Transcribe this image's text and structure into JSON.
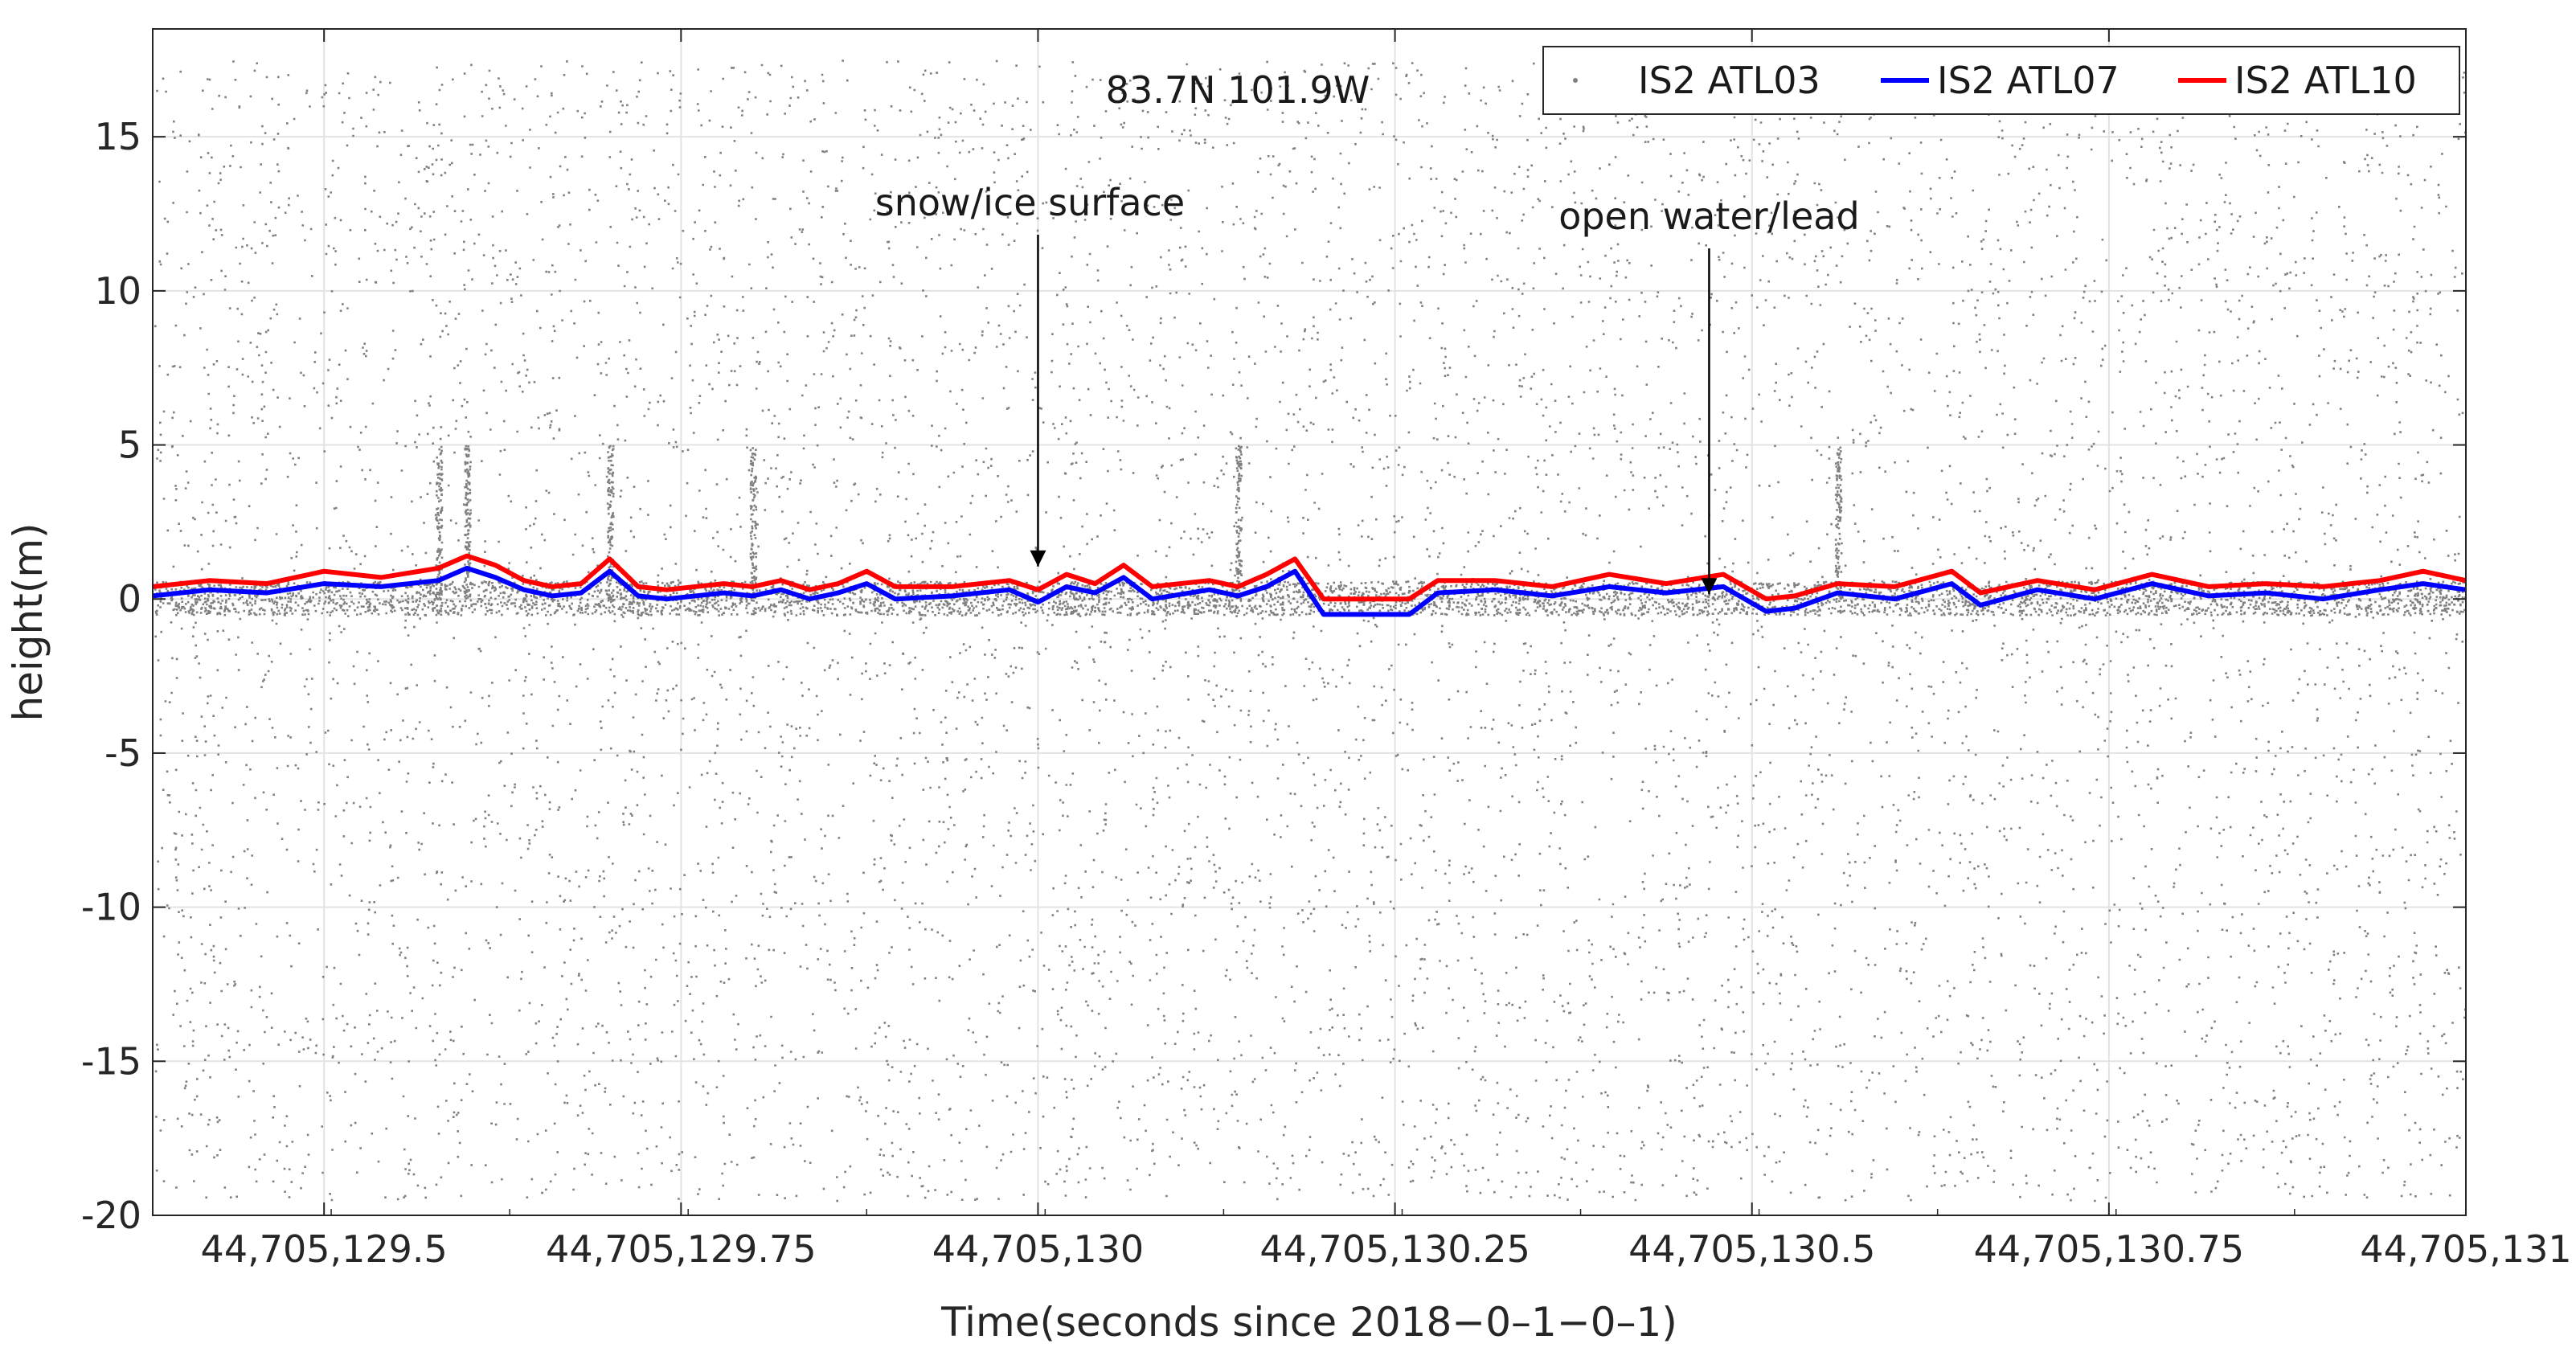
{
  "chart_data": {
    "type": "scatter",
    "title": "",
    "location_label": "83.7N 101.9W",
    "xlabel": "Time(seconds since 2018−0–1−0–1)",
    "ylabel": "height(m)",
    "xlim": [
      44705129.38,
      44705131.0
    ],
    "ylim": [
      -20,
      18.5
    ],
    "grid": true,
    "legend_position": "top-right",
    "x_ticks": [
      {
        "value": 44705129.5,
        "label": "44,705,129.5"
      },
      {
        "value": 44705129.75,
        "label": "44,705,129.75"
      },
      {
        "value": 44705130.0,
        "label": "44,705,130"
      },
      {
        "value": 44705130.25,
        "label": "44,705,130.25"
      },
      {
        "value": 44705130.5,
        "label": "44,705,130.5"
      },
      {
        "value": 44705130.75,
        "label": "44,705,130.75"
      },
      {
        "value": 44705131.0,
        "label": "44,705,131"
      }
    ],
    "y_ticks": [
      {
        "value": 15,
        "label": "15"
      },
      {
        "value": 10,
        "label": "10"
      },
      {
        "value": 5,
        "label": "5"
      },
      {
        "value": 0,
        "label": "0"
      },
      {
        "value": -5,
        "label": "-5"
      },
      {
        "value": -10,
        "label": "-10"
      },
      {
        "value": -15,
        "label": "-15"
      },
      {
        "value": -20,
        "label": "-20"
      }
    ],
    "series": [
      {
        "name": "IS2 ATL03",
        "kind": "points",
        "color": "#808080",
        "description_range_m": [
          -19.5,
          17.5
        ],
        "dense_surface_band_m": [
          -0.5,
          0.6
        ]
      },
      {
        "name": "IS2 ATL07",
        "kind": "line",
        "color": "#0000ff",
        "x": [
          44705129.38,
          44705129.42,
          44705129.46,
          44705129.5,
          44705129.54,
          44705129.58,
          44705129.6,
          44705129.62,
          44705129.64,
          44705129.66,
          44705129.68,
          44705129.7,
          44705129.72,
          44705129.74,
          44705129.78,
          44705129.8,
          44705129.82,
          44705129.84,
          44705129.86,
          44705129.88,
          44705129.9,
          44705129.94,
          44705129.98,
          44705130.0,
          44705130.02,
          44705130.04,
          44705130.06,
          44705130.08,
          44705130.12,
          44705130.14,
          44705130.16,
          44705130.18,
          44705130.2,
          44705130.24,
          44705130.26,
          44705130.28,
          44705130.32,
          44705130.36,
          44705130.4,
          44705130.44,
          44705130.48,
          44705130.51,
          44705130.53,
          44705130.56,
          44705130.6,
          44705130.64,
          44705130.66,
          44705130.7,
          44705130.74,
          44705130.78,
          44705130.82,
          44705130.86,
          44705130.9,
          44705130.94,
          44705130.97,
          44705131.0
        ],
        "y": [
          0.1,
          0.3,
          0.2,
          0.5,
          0.4,
          0.6,
          1.0,
          0.7,
          0.3,
          0.1,
          0.2,
          0.9,
          0.1,
          0.0,
          0.2,
          0.1,
          0.3,
          0.0,
          0.2,
          0.5,
          0.0,
          0.1,
          0.3,
          -0.1,
          0.4,
          0.2,
          0.7,
          0.0,
          0.3,
          0.1,
          0.4,
          0.9,
          -0.5,
          -0.5,
          -0.5,
          0.2,
          0.3,
          0.1,
          0.4,
          0.2,
          0.4,
          -0.4,
          -0.3,
          0.2,
          0.0,
          0.5,
          -0.2,
          0.3,
          0.0,
          0.5,
          0.1,
          0.2,
          0.0,
          0.3,
          0.5,
          0.3
        ]
      },
      {
        "name": "IS2 ATL10",
        "kind": "line",
        "color": "#ff0000",
        "x": [
          44705129.38,
          44705129.42,
          44705129.46,
          44705129.5,
          44705129.54,
          44705129.58,
          44705129.6,
          44705129.62,
          44705129.64,
          44705129.66,
          44705129.68,
          44705129.7,
          44705129.72,
          44705129.74,
          44705129.78,
          44705129.8,
          44705129.82,
          44705129.84,
          44705129.86,
          44705129.88,
          44705129.9,
          44705129.94,
          44705129.98,
          44705130.0,
          44705130.02,
          44705130.04,
          44705130.06,
          44705130.08,
          44705130.12,
          44705130.14,
          44705130.16,
          44705130.18,
          44705130.2,
          44705130.24,
          44705130.26,
          44705130.28,
          44705130.32,
          44705130.36,
          44705130.4,
          44705130.44,
          44705130.48,
          44705130.51,
          44705130.53,
          44705130.56,
          44705130.6,
          44705130.64,
          44705130.66,
          44705130.7,
          44705130.74,
          44705130.78,
          44705130.82,
          44705130.86,
          44705130.9,
          44705130.94,
          44705130.97,
          44705131.0
        ],
        "y": [
          0.4,
          0.6,
          0.5,
          0.9,
          0.7,
          1.0,
          1.4,
          1.1,
          0.6,
          0.4,
          0.5,
          1.3,
          0.4,
          0.3,
          0.5,
          0.4,
          0.6,
          0.3,
          0.5,
          0.9,
          0.4,
          0.4,
          0.6,
          0.3,
          0.8,
          0.5,
          1.1,
          0.4,
          0.6,
          0.4,
          0.8,
          1.3,
          0.0,
          0.0,
          0.0,
          0.6,
          0.6,
          0.4,
          0.8,
          0.5,
          0.8,
          0.0,
          0.1,
          0.5,
          0.4,
          0.9,
          0.2,
          0.6,
          0.3,
          0.8,
          0.4,
          0.5,
          0.4,
          0.6,
          0.9,
          0.6
        ]
      }
    ],
    "annotations": [
      {
        "text": "snow/ice surface",
        "x": 44705130.0,
        "y": 0.9
      },
      {
        "text": "open water/lead",
        "x": 44705130.47,
        "y": 0.0
      }
    ]
  }
}
